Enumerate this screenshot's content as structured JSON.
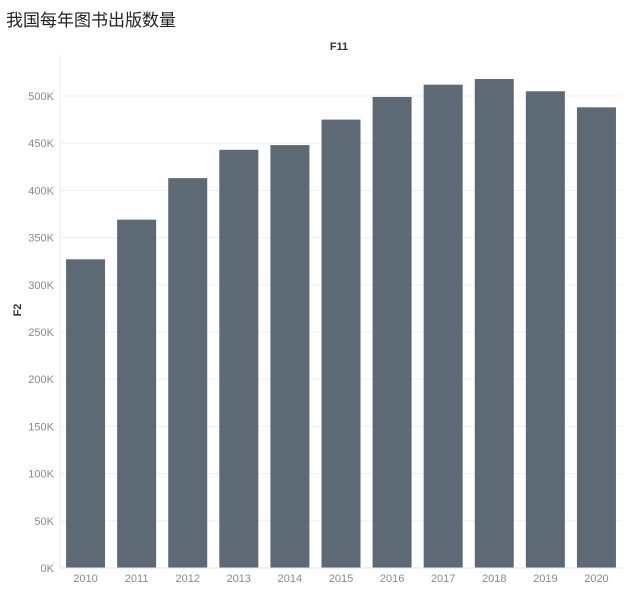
{
  "page_title": "我国每年图书出版数量",
  "chart_data": {
    "type": "bar",
    "title": "我国每年图书出版数量",
    "column_header": "F11",
    "xlabel": "",
    "ylabel": "F2",
    "categories": [
      "2010",
      "2011",
      "2012",
      "2013",
      "2014",
      "2015",
      "2016",
      "2017",
      "2018",
      "2019",
      "2020"
    ],
    "values": [
      327000,
      369000,
      413000,
      443000,
      448000,
      475000,
      499000,
      512000,
      518000,
      505000,
      488000
    ],
    "ylim": [
      0,
      500000
    ],
    "yticks": [
      0,
      50000,
      100000,
      150000,
      200000,
      250000,
      300000,
      350000,
      400000,
      450000,
      500000
    ],
    "ytick_labels": [
      "0K",
      "50K",
      "100K",
      "150K",
      "200K",
      "250K",
      "300K",
      "350K",
      "400K",
      "450K",
      "500K"
    ],
    "grid": true,
    "bar_color": "#5d6a75"
  }
}
